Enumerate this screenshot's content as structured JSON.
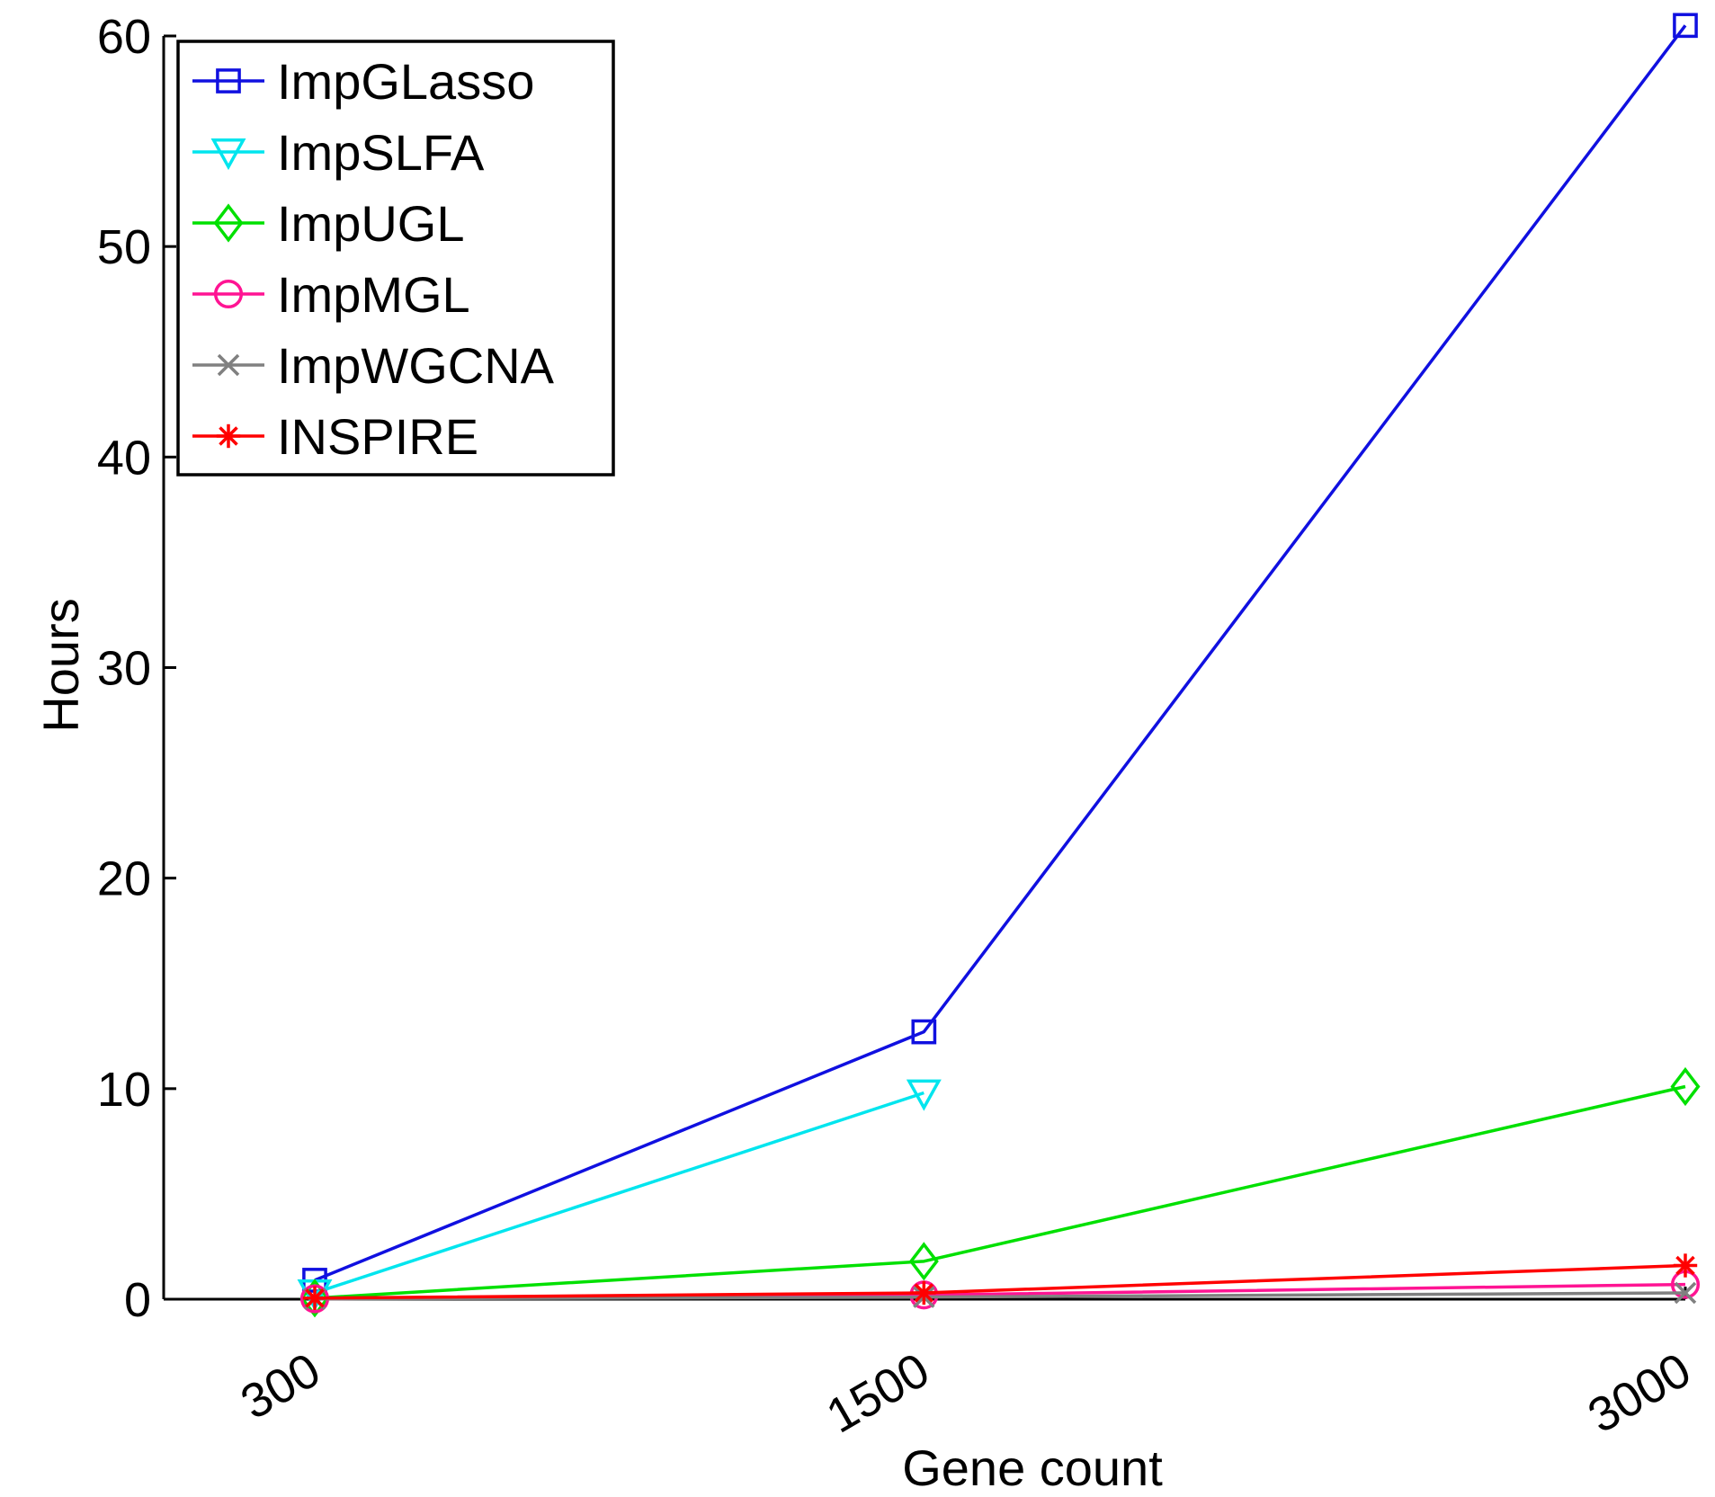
{
  "chart_data": {
    "type": "line",
    "title": "",
    "xlabel": "Gene count",
    "ylabel": "Hours",
    "categories": [
      "300",
      "1500",
      "3000"
    ],
    "x": [
      300,
      1500,
      3000
    ],
    "xlim": [
      0,
      3000
    ],
    "ylim": [
      0,
      60
    ],
    "yticks": [
      0,
      10,
      20,
      30,
      40,
      50,
      60
    ],
    "grid": false,
    "legend_position": "top-left",
    "series": [
      {
        "name": "ImpGLasso",
        "color": "#1010e0",
        "marker": "square",
        "values": [
          0.9,
          12.7,
          60.5
        ]
      },
      {
        "name": "ImpSLFA",
        "color": "#00e5ee",
        "marker": "triangle-down",
        "values": [
          0.3,
          9.8,
          null
        ]
      },
      {
        "name": "ImpUGL",
        "color": "#00e000",
        "marker": "diamond",
        "values": [
          0.05,
          1.8,
          10.1
        ]
      },
      {
        "name": "ImpMGL",
        "color": "#ff1493",
        "marker": "circle",
        "values": [
          0.02,
          0.2,
          0.7
        ]
      },
      {
        "name": "ImpWGCNA",
        "color": "#808080",
        "marker": "x",
        "values": [
          0.01,
          0.1,
          0.3
        ]
      },
      {
        "name": "INSPIRE",
        "color": "#ff0000",
        "marker": "star",
        "values": [
          0.05,
          0.3,
          1.6
        ]
      }
    ]
  }
}
